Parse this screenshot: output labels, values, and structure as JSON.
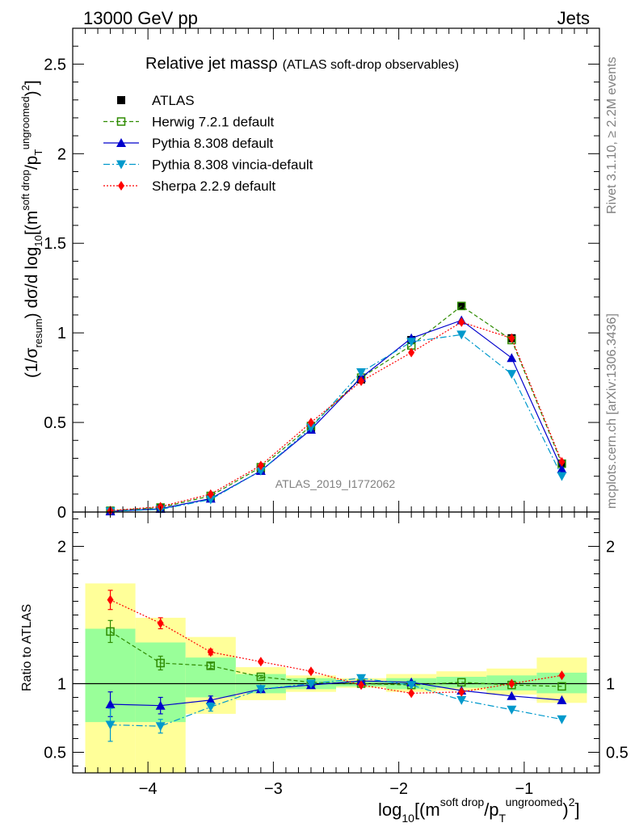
{
  "header": {
    "left": "13000 GeV pp",
    "right": "Jets"
  },
  "side_labels": {
    "rivet": "Rivet 3.1.10, ≥ 2.2M events",
    "mcplots": "mcplots.cern.ch [arXiv:1306.3436]"
  },
  "watermark": "ATLAS_2019_I1772062",
  "colors": {
    "herwig": "#2e8b00",
    "pythia": "#0000cc",
    "vincia": "#0099cc",
    "sherpa": "#ff0000",
    "atlas": "#000000",
    "band_outer": "#ffff99",
    "band_inner": "#99ff99"
  },
  "chart_data": [
    {
      "type": "line",
      "panel": "main",
      "title": "Relative jet mass",
      "title_symbol": "ρ",
      "subtitle": "(ATLAS soft-drop observables)",
      "ylabel": "(1/σresum) dσ/d log10[(msoft drop/pTungroomed)2]",
      "ylim": [
        0,
        2.7
      ],
      "xlim": [
        -4.6,
        -0.4
      ],
      "yticks": [
        0,
        0.5,
        1,
        1.5,
        2,
        2.5
      ],
      "ytick_labels": [
        "0",
        "0.5",
        "1",
        "1.5",
        "2",
        "2.5"
      ],
      "x": [
        -4.3,
        -3.9,
        -3.5,
        -3.1,
        -2.7,
        -2.3,
        -1.9,
        -1.5,
        -1.1,
        -0.7
      ],
      "legend": [
        "ATLAS",
        "Herwig 7.2.1 default",
        "Pythia 8.308 default",
        "Pythia 8.308 vincia-default",
        "Sherpa 2.2.9 default"
      ],
      "series": [
        {
          "name": "ATLAS",
          "values": [
            0.005,
            0.02,
            0.08,
            0.24,
            0.47,
            0.74,
            0.96,
            1.15,
            0.97,
            0.27
          ]
        },
        {
          "name": "Herwig 7.2.1 default",
          "values": [
            0.007,
            0.025,
            0.09,
            0.25,
            0.48,
            0.75,
            0.93,
            1.15,
            0.96,
            0.27
          ]
        },
        {
          "name": "Pythia 8.308 default",
          "values": [
            0.004,
            0.018,
            0.075,
            0.23,
            0.46,
            0.75,
            0.97,
            1.07,
            0.86,
            0.24
          ]
        },
        {
          "name": "Pythia 8.308 vincia-default",
          "values": [
            0.004,
            0.015,
            0.07,
            0.23,
            0.47,
            0.78,
            0.95,
            0.99,
            0.77,
            0.2
          ]
        },
        {
          "name": "Sherpa 2.2.9 default",
          "values": [
            0.008,
            0.03,
            0.1,
            0.26,
            0.5,
            0.73,
            0.89,
            1.06,
            0.97,
            0.28
          ]
        }
      ]
    },
    {
      "type": "line",
      "panel": "ratio",
      "ylabel": "Ratio to ATLAS",
      "xlabel": "log10[(msoft drop/pTungroomed)2]",
      "ylim": [
        0.35,
        2.25
      ],
      "yticks": [
        0.5,
        1,
        2
      ],
      "ytick_labels": [
        "0.5",
        "1",
        "2"
      ],
      "xticks": [
        -4,
        -3,
        -2,
        -1
      ],
      "xtick_labels": [
        "−4",
        "−3",
        "−2",
        "−1"
      ],
      "x": [
        -4.3,
        -3.9,
        -3.5,
        -3.1,
        -2.7,
        -2.3,
        -1.9,
        -1.5,
        -1.1,
        -0.7
      ],
      "bin_edges": [
        -4.5,
        -4.1,
        -3.7,
        -3.3,
        -2.9,
        -2.5,
        -2.1,
        -1.7,
        -1.3,
        -0.9,
        -0.5
      ],
      "band_outer": {
        "lo": [
          0.35,
          0.35,
          0.78,
          0.88,
          0.94,
          0.97,
          0.94,
          0.95,
          0.92,
          0.86
        ],
        "hi": [
          1.73,
          1.48,
          1.34,
          1.12,
          1.06,
          1.04,
          1.07,
          1.09,
          1.11,
          1.19
        ]
      },
      "band_inner": {
        "lo": [
          0.72,
          0.72,
          0.9,
          0.93,
          0.96,
          0.98,
          0.96,
          0.97,
          0.95,
          0.93
        ],
        "hi": [
          1.4,
          1.3,
          1.19,
          1.07,
          1.04,
          1.02,
          1.04,
          1.05,
          1.06,
          1.08
        ]
      },
      "series": [
        {
          "name": "Herwig 7.2.1 default",
          "values": [
            1.38,
            1.15,
            1.13,
            1.05,
            1.01,
            1.0,
            0.99,
            1.01,
            0.99,
            0.98
          ],
          "errors": [
            0.08,
            0.05,
            0.02,
            0.01,
            0.01,
            0,
            0,
            0,
            0,
            0
          ]
        },
        {
          "name": "Pythia 8.308 default",
          "values": [
            0.85,
            0.84,
            0.88,
            0.96,
            0.99,
            1.02,
            1.01,
            0.95,
            0.91,
            0.88
          ],
          "errors": [
            0.09,
            0.06,
            0.03,
            0.01,
            0.01,
            0,
            0,
            0,
            0,
            0
          ]
        },
        {
          "name": "Pythia 8.308 vincia-default",
          "values": [
            0.7,
            0.69,
            0.83,
            0.96,
            1.0,
            1.04,
            0.99,
            0.88,
            0.81,
            0.74
          ],
          "errors": [
            0.12,
            0.05,
            0.03,
            0.01,
            0.01,
            0,
            0,
            0,
            0,
            0
          ]
        },
        {
          "name": "Sherpa 2.2.9 default",
          "values": [
            1.61,
            1.44,
            1.23,
            1.16,
            1.09,
            0.99,
            0.93,
            0.94,
            1.0,
            1.06
          ],
          "errors": [
            0.07,
            0.04,
            0.02,
            0.01,
            0.01,
            0,
            0,
            0,
            0,
            0
          ]
        }
      ]
    }
  ]
}
